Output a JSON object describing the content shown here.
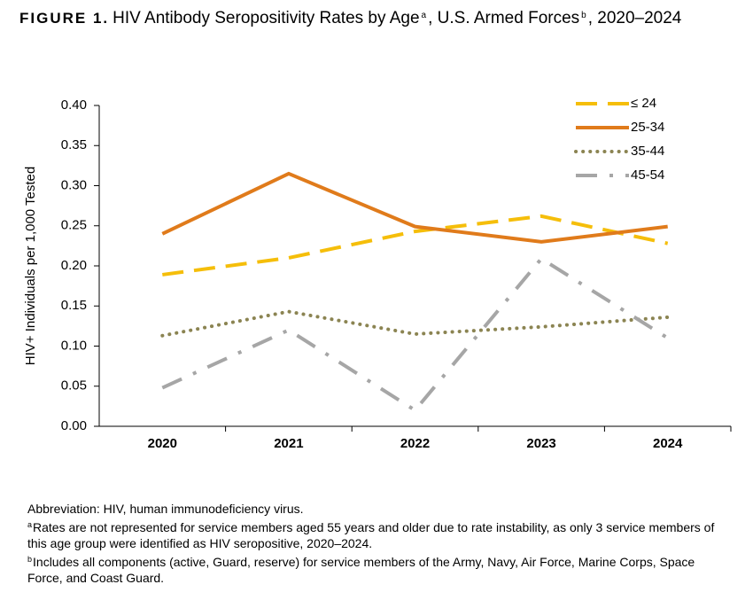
{
  "chart_data": {
    "type": "line",
    "title": {
      "label": "FIGURE 1.",
      "text": "HIV Antibody Seropositivity Rates by Age",
      "sup1": "a",
      "mid": ", U.S. Armed Forces",
      "sup2": "b",
      "end": ", 2020–2024"
    },
    "y_label": "HIV+ Individuals per 1,000 Tested",
    "categories": [
      "2020",
      "2021",
      "2022",
      "2023",
      "2024"
    ],
    "ylim": [
      0,
      0.4
    ],
    "yticks": [
      {
        "value": 0,
        "label": "0.00"
      },
      0.05,
      {
        "value": 0.1,
        "label": "0.10"
      },
      0.15,
      {
        "value": 0.2,
        "label": "0.20"
      },
      0.25,
      {
        "value": 0.3,
        "label": "0.30"
      },
      0.35,
      {
        "value": 0.4,
        "label": "0.40"
      }
    ],
    "grid": false,
    "legend": "upper right",
    "series": [
      {
        "name": "≤ 24",
        "color": "#f5be0a",
        "dash": "dashed",
        "values": [
          0.189,
          0.21,
          0.243,
          0.262,
          0.228
        ]
      },
      {
        "name": "25-34",
        "color": "#e07b1b",
        "dash": "solid",
        "values": [
          0.24,
          0.315,
          0.249,
          0.23,
          0.249
        ]
      },
      {
        "name": "35-44",
        "color": "#8b8452",
        "dash": "dotted",
        "values": [
          0.113,
          0.143,
          0.115,
          0.124,
          0.136
        ]
      },
      {
        "name": "45-54",
        "color": "#a6a6a6",
        "dash": "dashdot",
        "values": [
          0.048,
          0.12,
          0.02,
          0.209,
          0.11
        ]
      }
    ]
  },
  "notes": {
    "abbreviation": "Abbreviation: HIV, human immunodeficiency virus.",
    "items": [
      {
        "marker": "a",
        "text": "Rates are not represented for service members aged 55 years and older due to rate instability, as only 3 service members of this age group were identified as HIV seropositive, 2020–2024."
      },
      {
        "marker": "b",
        "text": "Includes all components (active, Guard, reserve) for service members of the Army, Navy, Air Force, Marine Corps, Space Force, and Coast Guard."
      }
    ]
  }
}
